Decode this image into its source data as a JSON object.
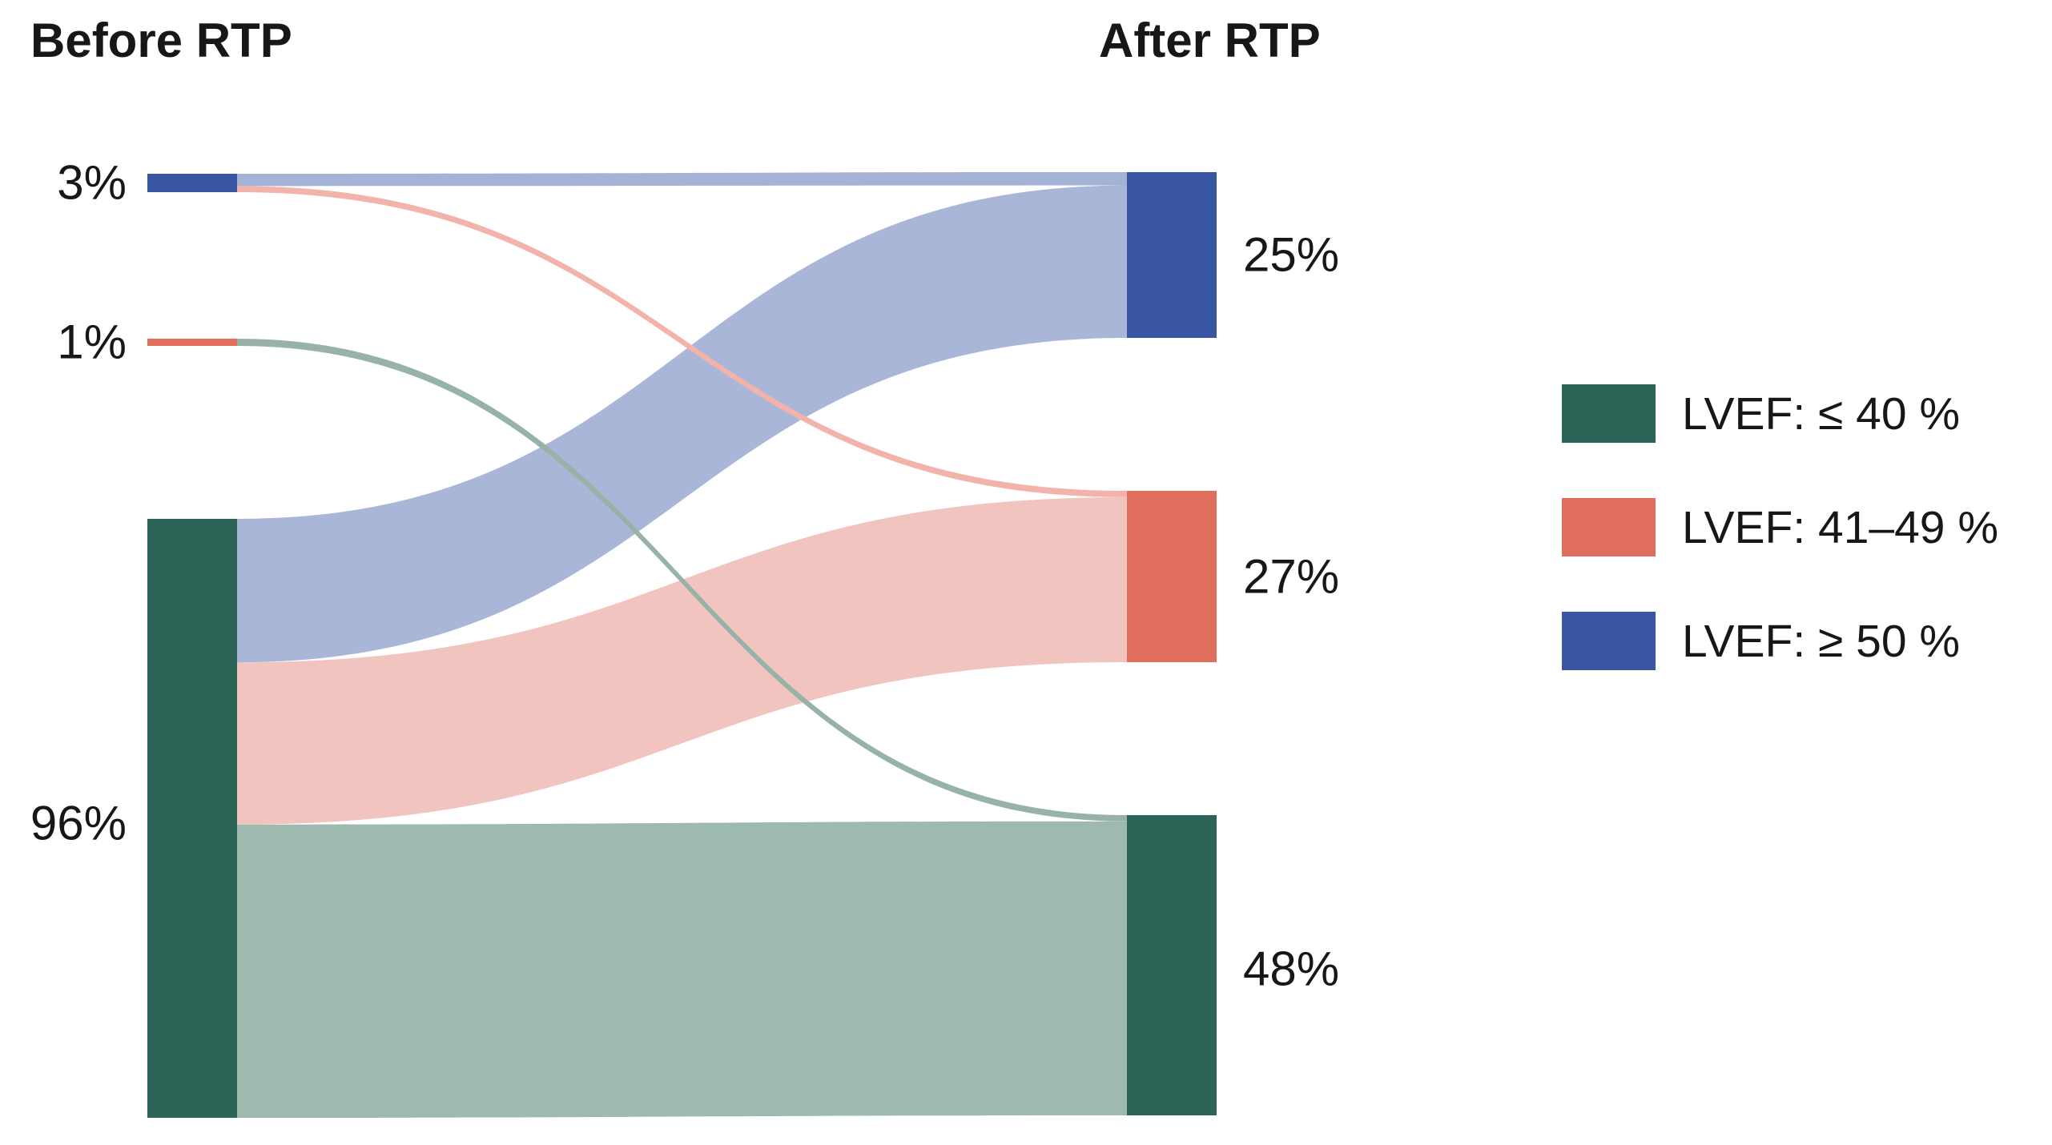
{
  "titles": {
    "left": "Before RTP",
    "right": "After RTP"
  },
  "colors": {
    "teal": "#2c6557",
    "salmon": "#df6e5c",
    "blue": "#3956a3",
    "teal_light": "#9eb9ae",
    "salmon_light": "#f2c4bf",
    "blue_light": "#a9b6d7",
    "teal_line": "#97b3a7",
    "salmon_line": "#f2b3ab",
    "blue_thin": "#a3b2d5",
    "text": "#171717"
  },
  "legend": {
    "items": [
      {
        "label": "LVEF: ≤ 40 %",
        "color": "#2c6557"
      },
      {
        "label": "LVEF: 41–49 %",
        "color": "#df6e5c"
      },
      {
        "label": "LVEF: ≥ 50 %",
        "color": "#3956a3"
      }
    ]
  },
  "chart_data": {
    "type": "sankey",
    "unit": "%",
    "left_column_title": "Before RTP",
    "right_column_title": "After RTP",
    "nodes": [
      {
        "id": "before-lvef-ge50",
        "side": "left",
        "label": "3%",
        "value": 3,
        "category": "LVEF: ≥ 50 %",
        "color_key": "blue"
      },
      {
        "id": "before-lvef-41-49",
        "side": "left",
        "label": "1%",
        "value": 1,
        "category": "LVEF: 41–49 %",
        "color_key": "salmon"
      },
      {
        "id": "before-lvef-le40",
        "side": "left",
        "label": "96%",
        "value": 96,
        "category": "LVEF: ≤ 40 %",
        "color_key": "teal"
      },
      {
        "id": "after-lvef-ge50",
        "side": "right",
        "label": "25%",
        "value": 25,
        "category": "LVEF: ≥ 50 %",
        "color_key": "blue"
      },
      {
        "id": "after-lvef-41-49",
        "side": "right",
        "label": "27%",
        "value": 27,
        "category": "LVEF: 41–49 %",
        "color_key": "salmon"
      },
      {
        "id": "after-lvef-le40",
        "side": "right",
        "label": "48%",
        "value": 48,
        "category": "LVEF: ≤ 40 %",
        "color_key": "teal"
      }
    ],
    "links": [
      {
        "source": "before-lvef-ge50",
        "target": "after-lvef-ge50",
        "value": 2,
        "color_key": "blue_thin"
      },
      {
        "source": "before-lvef-ge50",
        "target": "after-lvef-41-49",
        "value": 1,
        "color_key": "salmon_line"
      },
      {
        "source": "before-lvef-41-49",
        "target": "after-lvef-le40",
        "value": 1,
        "color_key": "teal_line"
      },
      {
        "source": "before-lvef-le40",
        "target": "after-lvef-ge50",
        "value": 23,
        "color_key": "blue_light"
      },
      {
        "source": "before-lvef-le40",
        "target": "after-lvef-41-49",
        "value": 26,
        "color_key": "salmon_light"
      },
      {
        "source": "before-lvef-le40",
        "target": "after-lvef-le40",
        "value": 47,
        "color_key": "teal_light"
      }
    ]
  }
}
